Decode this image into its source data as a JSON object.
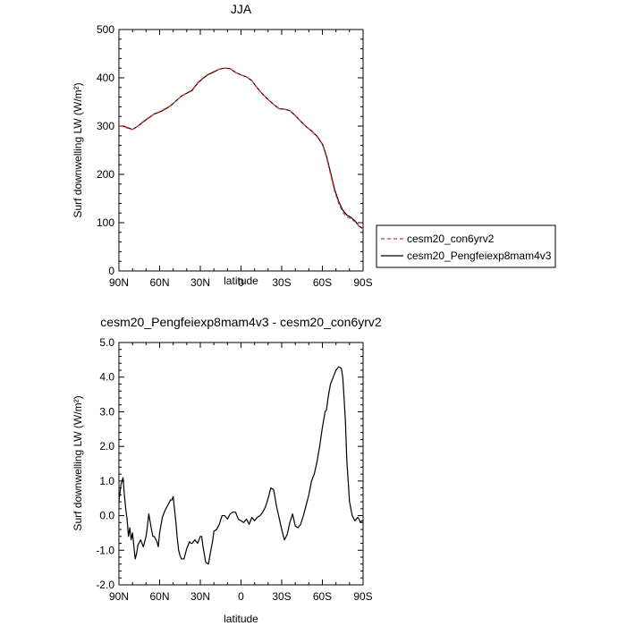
{
  "chart_data": [
    {
      "type": "line",
      "title": "JJA",
      "xlabel": "latitude",
      "ylabel": "Surf downwelling LW (W/m²)",
      "xlim": [
        90,
        -90
      ],
      "ylim": [
        0,
        500
      ],
      "x_ticks": [
        {
          "value": 90,
          "label": "90N"
        },
        {
          "value": 60,
          "label": "60N"
        },
        {
          "value": 30,
          "label": "30N"
        },
        {
          "value": 0,
          "label": "0"
        },
        {
          "value": -30,
          "label": "30S"
        },
        {
          "value": -60,
          "label": "60S"
        },
        {
          "value": -90,
          "label": "90S"
        }
      ],
      "y_ticks": [
        0,
        100,
        200,
        300,
        400,
        500
      ],
      "legend_position": "right",
      "series": [
        {
          "name": "cesm20_con6yrv2",
          "color": "#e8302a",
          "dash": "dashed",
          "x": [
            90,
            87,
            84,
            80,
            76,
            72,
            68,
            64,
            60,
            56,
            52,
            48,
            44,
            40,
            36,
            32,
            28,
            24,
            20,
            16,
            12,
            8,
            4,
            0,
            -4,
            -8,
            -12,
            -16,
            -20,
            -24,
            -28,
            -32,
            -36,
            -40,
            -44,
            -48,
            -52,
            -56,
            -60,
            -63,
            -66,
            -69,
            -72,
            -75,
            -78,
            -81,
            -84,
            -87,
            -90
          ],
          "values": [
            300,
            300,
            296,
            293,
            300,
            310,
            318,
            325,
            330,
            336,
            342,
            352,
            362,
            369,
            375,
            390,
            400,
            408,
            413,
            418,
            420,
            419,
            411,
            406,
            402,
            394,
            379,
            366,
            355,
            345,
            336,
            335,
            332,
            322,
            310,
            299,
            290,
            278,
            262,
            235,
            200,
            165,
            140,
            122,
            112,
            108,
            102,
            93,
            87
          ]
        },
        {
          "name": "cesm20_Pengfeiexp8mam4v3",
          "color": "#000000",
          "dash": "solid",
          "x": [
            90,
            87,
            84,
            80,
            76,
            72,
            68,
            64,
            60,
            56,
            52,
            48,
            44,
            40,
            36,
            32,
            28,
            24,
            20,
            16,
            12,
            8,
            4,
            0,
            -4,
            -8,
            -12,
            -16,
            -20,
            -24,
            -28,
            -32,
            -36,
            -40,
            -44,
            -48,
            -52,
            -56,
            -60,
            -63,
            -66,
            -69,
            -72,
            -75,
            -78,
            -81,
            -84,
            -87,
            -90
          ],
          "values": [
            300,
            300,
            297,
            293,
            300,
            309,
            317,
            325,
            329,
            335,
            342,
            352,
            362,
            368,
            374,
            389,
            399,
            407,
            412,
            418,
            420,
            419,
            411,
            406,
            402,
            394,
            379,
            366,
            355,
            345,
            336,
            335,
            332,
            322,
            310,
            299,
            290,
            279,
            263,
            238,
            204,
            169,
            144,
            126,
            116,
            111,
            104,
            93,
            87
          ]
        }
      ]
    },
    {
      "type": "line",
      "title": "cesm20_Pengfeiexp8mam4v3 - cesm20_con6yrv2",
      "xlabel": "latitude",
      "ylabel": "Surf downwelling LW (W/m²)",
      "xlim": [
        90,
        -90
      ],
      "ylim": [
        -2.0,
        5.0
      ],
      "x_ticks": [
        {
          "value": 90,
          "label": "90N"
        },
        {
          "value": 60,
          "label": "60N"
        },
        {
          "value": 30,
          "label": "30N"
        },
        {
          "value": 0,
          "label": "0"
        },
        {
          "value": -30,
          "label": "30S"
        },
        {
          "value": -60,
          "label": "60S"
        },
        {
          "value": -90,
          "label": "90S"
        }
      ],
      "y_ticks": [
        {
          "value": -2,
          "label": "-2.0"
        },
        {
          "value": -1,
          "label": "-1.0"
        },
        {
          "value": 0,
          "label": "0.0"
        },
        {
          "value": 1,
          "label": "1.0"
        },
        {
          "value": 2,
          "label": "2.0"
        },
        {
          "value": 3,
          "label": "3.0"
        },
        {
          "value": 4,
          "label": "4.0"
        },
        {
          "value": 5,
          "label": "5.0"
        }
      ],
      "series": [
        {
          "color": "#000000",
          "dash": "solid",
          "x": [
            90,
            88.5,
            87,
            86,
            85,
            84,
            83,
            82,
            81,
            80,
            78,
            77,
            76,
            74,
            72,
            70,
            69,
            68,
            66,
            65,
            64,
            62,
            61,
            60,
            58,
            56,
            54,
            52,
            51,
            50,
            48,
            47,
            46,
            45,
            44,
            42,
            40,
            38,
            37,
            36,
            34,
            32,
            30,
            29,
            28,
            26,
            24,
            22,
            21,
            20,
            18,
            16,
            14,
            12,
            10,
            8,
            6,
            4,
            2,
            0,
            -2,
            -4,
            -6,
            -8,
            -10,
            -12,
            -14,
            -16,
            -18,
            -20,
            -22,
            -24,
            -25,
            -26,
            -28,
            -30,
            -32,
            -34,
            -36,
            -38,
            -40,
            -42,
            -44,
            -46,
            -48,
            -50,
            -52,
            -54,
            -56,
            -58,
            -60,
            -62,
            -63,
            -64,
            -65,
            -66,
            -67,
            -68,
            -69,
            -70,
            -72,
            -74,
            -75,
            -76,
            -77,
            -78,
            -80,
            -82,
            -84,
            -86,
            -87,
            -88,
            -89,
            -90
          ],
          "values": [
            0.4,
            0.9,
            1.1,
            0.6,
            0.2,
            -0.1,
            -0.6,
            -0.35,
            -0.7,
            -0.5,
            -1.25,
            -1.1,
            -0.85,
            -0.7,
            -0.9,
            -0.6,
            -0.3,
            0.05,
            -0.4,
            -0.6,
            -0.6,
            -0.75,
            -0.9,
            -0.5,
            -0.05,
            0.15,
            0.3,
            0.45,
            0.45,
            0.55,
            -0.2,
            -0.65,
            -1.0,
            -1.15,
            -1.25,
            -1.25,
            -0.95,
            -0.75,
            -0.8,
            -0.8,
            -0.7,
            -0.8,
            -0.6,
            -0.6,
            -0.9,
            -1.35,
            -1.4,
            -0.95,
            -0.75,
            -0.45,
            -0.4,
            -0.25,
            0.0,
            0.0,
            -0.1,
            0.05,
            0.1,
            0.1,
            -0.1,
            -0.15,
            -0.2,
            -0.1,
            -0.25,
            -0.05,
            -0.15,
            -0.05,
            0.0,
            0.1,
            0.25,
            0.5,
            0.8,
            0.75,
            0.55,
            0.3,
            -0.05,
            -0.4,
            -0.7,
            -0.55,
            -0.2,
            0.05,
            -0.3,
            -0.35,
            -0.25,
            0.0,
            0.3,
            0.6,
            1.0,
            1.2,
            1.55,
            2.0,
            2.55,
            3.0,
            3.05,
            3.35,
            3.6,
            3.8,
            3.9,
            4.0,
            4.1,
            4.2,
            4.3,
            4.25,
            4.0,
            3.4,
            2.7,
            1.6,
            0.4,
            0.0,
            -0.15,
            -0.05,
            -0.1,
            -0.2,
            -0.15,
            -0.15
          ]
        }
      ]
    }
  ]
}
